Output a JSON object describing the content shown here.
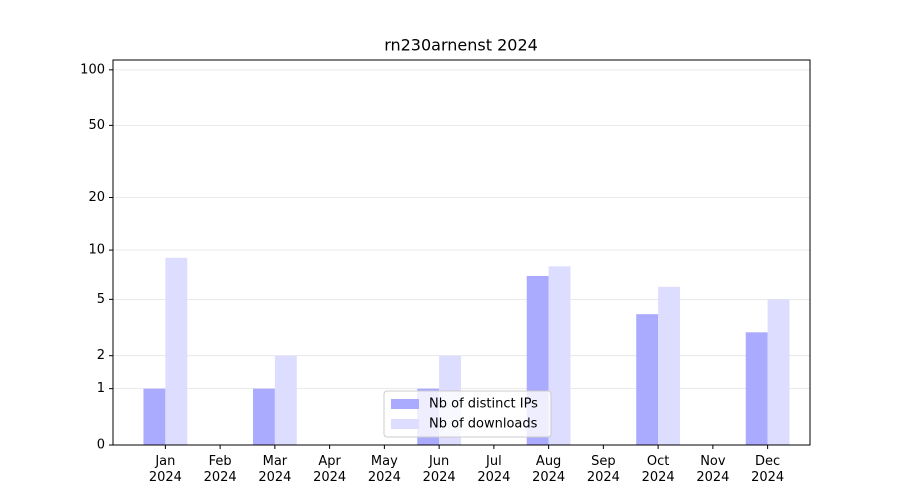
{
  "chart_data": {
    "type": "bar",
    "title": "rn230arnenst 2024",
    "categories": [
      "Jan\n2024",
      "Feb\n2024",
      "Mar\n2024",
      "Apr\n2024",
      "May\n2024",
      "Jun\n2024",
      "Jul\n2024",
      "Aug\n2024",
      "Sep\n2024",
      "Oct\n2024",
      "Nov\n2024",
      "Dec\n2024"
    ],
    "series": [
      {
        "name": "Nb of distinct IPs",
        "color": "#aaaaff",
        "values": [
          1,
          0,
          1,
          0,
          0,
          1,
          0,
          7,
          0,
          4,
          0,
          3
        ]
      },
      {
        "name": "Nb of downloads",
        "color": "#ddddff",
        "values": [
          9,
          0,
          2,
          0,
          0,
          2,
          0,
          8,
          0,
          6,
          0,
          5
        ]
      }
    ],
    "yscale": "log1p",
    "ylim": [
      0,
      113
    ],
    "yticks": [
      0,
      1,
      2,
      5,
      10,
      20,
      50,
      100
    ],
    "grid": true,
    "legend": "lower center"
  }
}
